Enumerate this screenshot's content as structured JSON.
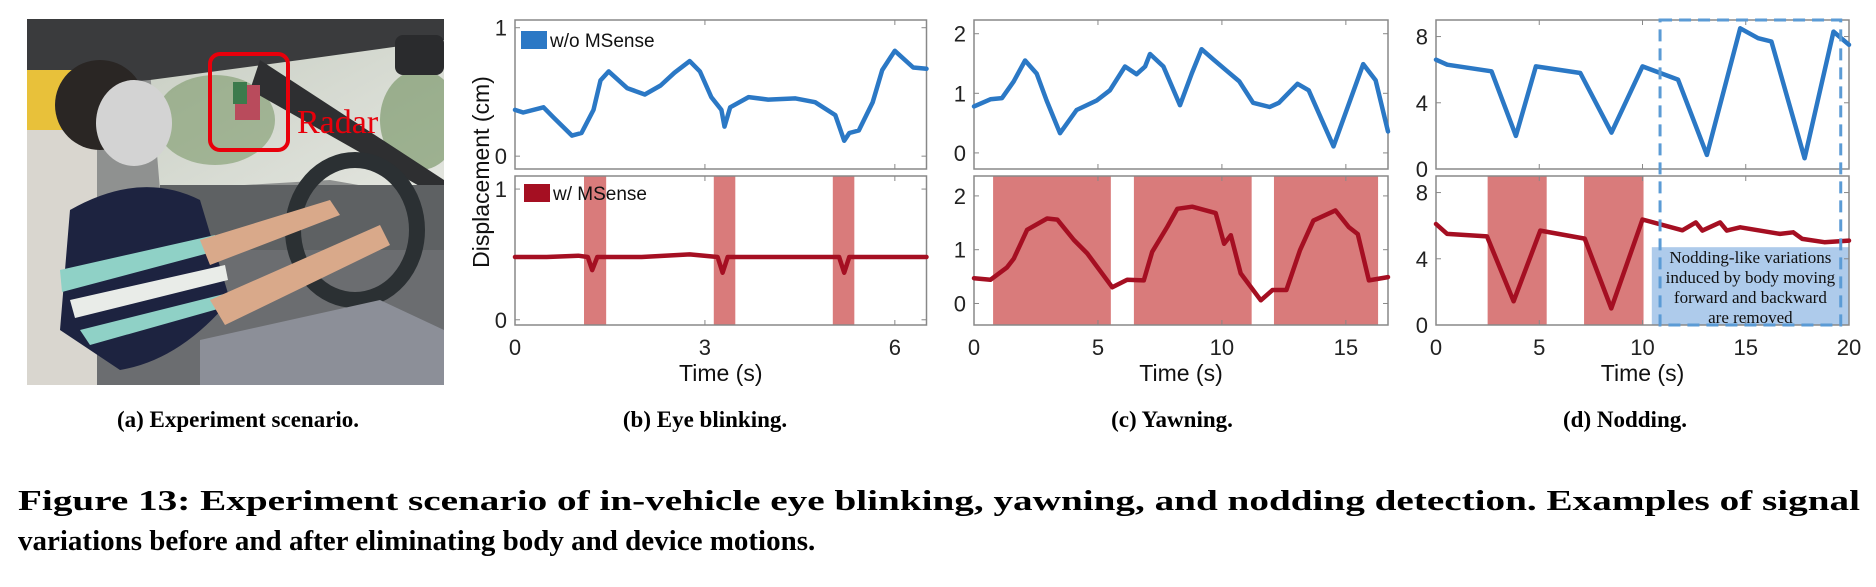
{
  "colors": {
    "without": "#2b78c5",
    "with": "#a50f22",
    "shade": "#d97b7b",
    "annotation_box": "#aecbeb",
    "dashed_box": "#5b9bd5",
    "radar_box": "#e8000b"
  },
  "photo": {
    "label": "Radar"
  },
  "ylabel": "Displacement (cm)",
  "legend": {
    "without": "w/o MSense",
    "with": "w/ MSense"
  },
  "subcaptions": {
    "a": "(a) Experiment scenario.",
    "b": "(b) Eye blinking.",
    "c": "(c) Yawning.",
    "d": "(d) Nodding."
  },
  "caption": {
    "line1": "Figure 13: Experiment scenario of in-vehicle eye blinking, yawning, and nodding detection. Examples of signal",
    "line2": "variations before and after eliminating body and device motions."
  },
  "chart_data": [
    {
      "id": "b",
      "type": "line",
      "title": "(b) Eye blinking.",
      "xlabel": "Time (s)",
      "ylabel": "Displacement (cm)",
      "xlim": [
        0,
        6.5
      ],
      "xticks": [
        0,
        3,
        6
      ],
      "grid": false,
      "legend_placement": "top-left",
      "panels": [
        {
          "series": "w/o MSense",
          "ylim": [
            -0.1,
            1.06
          ],
          "yticks": [
            0,
            1
          ],
          "shaded": [],
          "points": [
            [
              0,
              0.36
            ],
            [
              0.13,
              0.34
            ],
            [
              0.45,
              0.38
            ],
            [
              0.61,
              0.3
            ],
            [
              0.9,
              0.16
            ],
            [
              1.05,
              0.18
            ],
            [
              1.24,
              0.36
            ],
            [
              1.35,
              0.59
            ],
            [
              1.48,
              0.66
            ],
            [
              1.77,
              0.53
            ],
            [
              2.05,
              0.48
            ],
            [
              2.3,
              0.55
            ],
            [
              2.52,
              0.65
            ],
            [
              2.76,
              0.74
            ],
            [
              2.92,
              0.66
            ],
            [
              3.1,
              0.46
            ],
            [
              3.26,
              0.36
            ],
            [
              3.31,
              0.23
            ],
            [
              3.4,
              0.38
            ],
            [
              3.69,
              0.46
            ],
            [
              4.0,
              0.44
            ],
            [
              4.43,
              0.45
            ],
            [
              4.74,
              0.42
            ],
            [
              5.06,
              0.32
            ],
            [
              5.2,
              0.12
            ],
            [
              5.28,
              0.18
            ],
            [
              5.43,
              0.2
            ],
            [
              5.65,
              0.42
            ],
            [
              5.8,
              0.67
            ],
            [
              6.0,
              0.82
            ],
            [
              6.29,
              0.69
            ],
            [
              6.5,
              0.68
            ]
          ]
        },
        {
          "series": "w/ MSense",
          "ylim": [
            -0.04,
            1.1
          ],
          "yticks": [
            0,
            1
          ],
          "shaded": [
            [
              1.09,
              1.44
            ],
            [
              3.14,
              3.48
            ],
            [
              5.02,
              5.36
            ]
          ],
          "points": [
            [
              0,
              0.48
            ],
            [
              0.5,
              0.48
            ],
            [
              1.0,
              0.49
            ],
            [
              1.15,
              0.48
            ],
            [
              1.22,
              0.38
            ],
            [
              1.3,
              0.48
            ],
            [
              2.0,
              0.48
            ],
            [
              2.76,
              0.5
            ],
            [
              3.2,
              0.48
            ],
            [
              3.28,
              0.36
            ],
            [
              3.36,
              0.48
            ],
            [
              4.5,
              0.48
            ],
            [
              5.12,
              0.48
            ],
            [
              5.2,
              0.36
            ],
            [
              5.28,
              0.48
            ],
            [
              6.5,
              0.48
            ]
          ]
        }
      ]
    },
    {
      "id": "c",
      "type": "line",
      "title": "(c) Yawning.",
      "xlabel": "Time (s)",
      "xlim": [
        0,
        16.7
      ],
      "xticks": [
        0,
        5,
        10,
        15
      ],
      "grid": false,
      "panels": [
        {
          "series": "w/o MSense",
          "ylim": [
            -0.27,
            2.23
          ],
          "yticks": [
            0,
            1,
            2
          ],
          "shaded": [],
          "points": [
            [
              0,
              0.78
            ],
            [
              0.66,
              0.9
            ],
            [
              1.13,
              0.92
            ],
            [
              1.6,
              1.2
            ],
            [
              2.06,
              1.55
            ],
            [
              2.53,
              1.33
            ],
            [
              2.93,
              0.88
            ],
            [
              3.47,
              0.33
            ],
            [
              4.14,
              0.72
            ],
            [
              4.95,
              0.88
            ],
            [
              5.48,
              1.05
            ],
            [
              6.09,
              1.45
            ],
            [
              6.56,
              1.32
            ],
            [
              6.9,
              1.45
            ],
            [
              7.1,
              1.66
            ],
            [
              7.64,
              1.45
            ],
            [
              8.31,
              0.8
            ],
            [
              8.78,
              1.33
            ],
            [
              9.18,
              1.74
            ],
            [
              9.65,
              1.57
            ],
            [
              10.19,
              1.38
            ],
            [
              10.7,
              1.2
            ],
            [
              11.26,
              0.84
            ],
            [
              11.93,
              0.77
            ],
            [
              12.3,
              0.84
            ],
            [
              13.05,
              1.16
            ],
            [
              13.5,
              1.05
            ],
            [
              14.5,
              0.11
            ],
            [
              15.7,
              1.49
            ],
            [
              16.2,
              1.22
            ],
            [
              16.7,
              0.36
            ]
          ]
        },
        {
          "series": "w/ MSense",
          "ylim": [
            -0.4,
            2.37
          ],
          "yticks": [
            0,
            1,
            2
          ],
          "shaded": [
            [
              0.77,
              5.52
            ],
            [
              6.45,
              11.2
            ],
            [
              12.1,
              16.3
            ]
          ],
          "points": [
            [
              0,
              0.47
            ],
            [
              0.66,
              0.44
            ],
            [
              1.33,
              0.67
            ],
            [
              1.6,
              0.83
            ],
            [
              2.14,
              1.37
            ],
            [
              2.95,
              1.58
            ],
            [
              3.36,
              1.56
            ],
            [
              4.03,
              1.18
            ],
            [
              4.57,
              0.93
            ],
            [
              5.58,
              0.3
            ],
            [
              6.18,
              0.44
            ],
            [
              6.85,
              0.43
            ],
            [
              7.19,
              0.96
            ],
            [
              7.8,
              1.43
            ],
            [
              8.2,
              1.76
            ],
            [
              8.8,
              1.8
            ],
            [
              9.75,
              1.68
            ],
            [
              10.09,
              1.11
            ],
            [
              10.36,
              1.27
            ],
            [
              10.76,
              0.56
            ],
            [
              11.57,
              0.06
            ],
            [
              12.04,
              0.25
            ],
            [
              12.6,
              0.25
            ],
            [
              13.15,
              0.99
            ],
            [
              13.69,
              1.54
            ],
            [
              14.58,
              1.73
            ],
            [
              15.12,
              1.42
            ],
            [
              15.48,
              1.29
            ],
            [
              15.93,
              0.43
            ],
            [
              16.7,
              0.49
            ]
          ]
        }
      ]
    },
    {
      "id": "d",
      "type": "line",
      "title": "(d) Nodding.",
      "xlabel": "Time (s)",
      "xlim": [
        0,
        20
      ],
      "xticks": [
        0,
        5,
        10,
        15,
        20
      ],
      "grid": false,
      "highlight_region": {
        "x": [
          10.85,
          19.6
        ],
        "style": "dashed"
      },
      "annotation": {
        "x": [
          10.45,
          20
        ],
        "y_bottom_panel": [
          0,
          4.7
        ],
        "lines": [
          "Nodding-like variations",
          "induced by body moving",
          "forward and backward",
          "are removed"
        ]
      },
      "panels": [
        {
          "series": "w/o MSense",
          "ylim": [
            0,
            9
          ],
          "yticks": [
            0,
            4,
            8
          ],
          "shaded": [],
          "points": [
            [
              0,
              6.6
            ],
            [
              0.54,
              6.3
            ],
            [
              2.69,
              5.9
            ],
            [
              3.87,
              2.0
            ],
            [
              4.84,
              6.2
            ],
            [
              6.99,
              5.8
            ],
            [
              8.5,
              2.2
            ],
            [
              10.0,
              6.2
            ],
            [
              11.72,
              5.4
            ],
            [
              13.12,
              0.85
            ],
            [
              14.73,
              8.5
            ],
            [
              15.6,
              7.9
            ],
            [
              16.24,
              7.7
            ],
            [
              17.85,
              0.65
            ],
            [
              19.25,
              8.3
            ],
            [
              20,
              7.5
            ]
          ]
        },
        {
          "series": "w/ MSense",
          "ylim": [
            0,
            9
          ],
          "yticks": [
            0,
            4,
            8
          ],
          "shaded": [
            [
              2.5,
              5.36
            ],
            [
              7.17,
              10.05
            ]
          ],
          "points": [
            [
              0,
              6.1
            ],
            [
              0.54,
              5.5
            ],
            [
              2.47,
              5.35
            ],
            [
              3.76,
              1.43
            ],
            [
              5.05,
              5.7
            ],
            [
              7.2,
              5.22
            ],
            [
              8.49,
              1.0
            ],
            [
              10.0,
              6.37
            ],
            [
              11.93,
              5.72
            ],
            [
              12.58,
              6.2
            ],
            [
              12.9,
              5.7
            ],
            [
              13.76,
              6.2
            ],
            [
              14.08,
              5.7
            ],
            [
              14.73,
              5.9
            ],
            [
              16.66,
              5.5
            ],
            [
              17.3,
              5.6
            ],
            [
              17.74,
              5.2
            ],
            [
              18.81,
              5.0
            ],
            [
              20,
              5.1
            ]
          ]
        }
      ]
    }
  ]
}
